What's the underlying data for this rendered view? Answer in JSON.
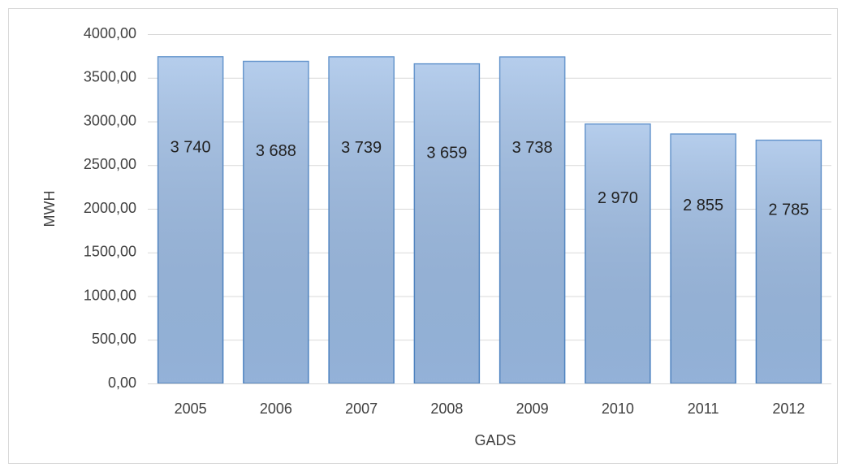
{
  "chart_data": {
    "type": "bar",
    "categories": [
      "2005",
      "2006",
      "2007",
      "2008",
      "2009",
      "2010",
      "2011",
      "2012"
    ],
    "values": [
      3740,
      3688,
      3739,
      3659,
      3738,
      2970,
      2855,
      2785
    ],
    "value_labels": [
      "3 740",
      "3 688",
      "3 739",
      "3 659",
      "3 738",
      "2 970",
      "2 855",
      "2 785"
    ],
    "color": "#9dbde6",
    "x_label": "GADS",
    "y_label": "MWH",
    "ylim": [
      0,
      4000
    ],
    "yticks": [
      {
        "value": 0,
        "label": "0,00"
      },
      {
        "value": 500,
        "label": "500,00"
      },
      {
        "value": 1000,
        "label": "1000,00"
      },
      {
        "value": 1500,
        "label": "1500,00"
      },
      {
        "value": 2000,
        "label": "2000,00"
      },
      {
        "value": 2500,
        "label": "2500,00"
      },
      {
        "value": 3000,
        "label": "3000,00"
      },
      {
        "value": 3500,
        "label": "3500,00"
      },
      {
        "value": 4000,
        "label": "4000,00"
      }
    ],
    "grid": true
  }
}
